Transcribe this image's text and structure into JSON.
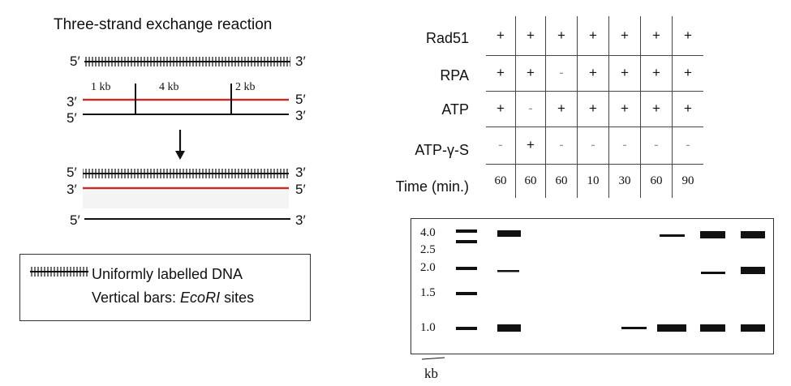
{
  "title": "Three-strand exchange reaction",
  "strand_labels": {
    "five": "5′",
    "three": "3′"
  },
  "segments": [
    "1 kb",
    "4 kb",
    "2 kb"
  ],
  "legend": {
    "line1": "Uniformly labelled DNA",
    "line2_prefix": "Vertical bars: ",
    "line2_em": "EcoRI",
    "line2_suffix": " sites"
  },
  "table": {
    "row_labels": [
      "Rad51",
      "RPA",
      "ATP",
      "ATP-γ-S",
      "Time (min.)"
    ],
    "rows": [
      [
        "+",
        "+",
        "+",
        "+",
        "+",
        "+",
        "+"
      ],
      [
        "+",
        "+",
        "-",
        "+",
        "+",
        "+",
        "+"
      ],
      [
        "+",
        "-",
        "+",
        "+",
        "+",
        "+",
        "+"
      ],
      [
        "-",
        "+",
        "-",
        "-",
        "-",
        "-",
        "-"
      ],
      [
        "60",
        "60",
        "60",
        "10",
        "30",
        "60",
        "90"
      ]
    ]
  },
  "gel": {
    "markers": [
      "4.0",
      "2.5",
      "2.0",
      "1.5",
      "1.0"
    ],
    "unit": "kb"
  },
  "colors": {
    "red_strand": "#c0302a",
    "ink": "#111111"
  }
}
